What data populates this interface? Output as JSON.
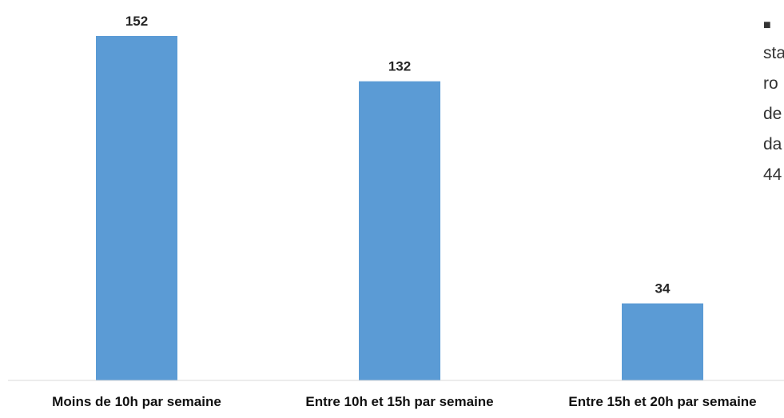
{
  "chart_data": {
    "type": "bar",
    "categories": [
      "Moins de 10h par semaine",
      "Entre 10h et 15h par semaine",
      "Entre 15h et 20h par semaine"
    ],
    "values": [
      152,
      132,
      34
    ],
    "title": "",
    "xlabel": "",
    "ylabel": "",
    "ylim": [
      0,
      160
    ],
    "grid": false,
    "legend": "none",
    "data_labels": true,
    "bar_color": "#5B9BD5"
  },
  "side_text": {
    "bullet": "■",
    "lines": [
      "sta",
      "ro",
      "de",
      "da",
      "44"
    ]
  }
}
